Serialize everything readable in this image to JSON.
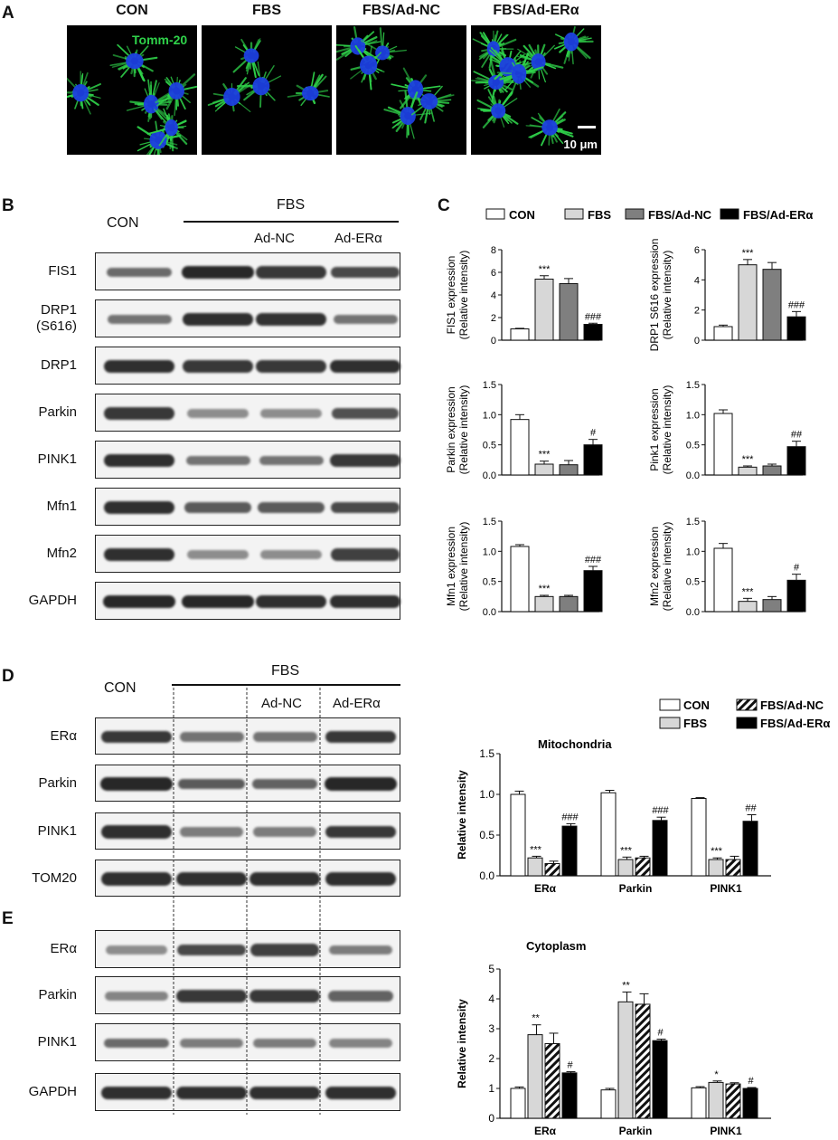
{
  "panel_labels": {
    "a": "A",
    "b": "B",
    "c": "C",
    "d": "D",
    "e": "E"
  },
  "panel_a": {
    "titles": [
      "CON",
      "FBS",
      "FBS/Ad-NC",
      "FBS/Ad-ERα"
    ],
    "stain_label": "Tomm-20",
    "scale_bar": "10 μm",
    "colors": {
      "mitochondria": "#2fd24a",
      "nucleus": "#1c3fe0"
    }
  },
  "panel_b": {
    "header_con": "CON",
    "header_fbs": "FBS",
    "header_adnc": "Ad-NC",
    "header_ader": "Ad-ERα",
    "rows": [
      {
        "label": "FIS1",
        "intensity": [
          0.55,
          0.95,
          0.85,
          0.75
        ]
      },
      {
        "label": "DRP1\n(S616)",
        "intensity": [
          0.5,
          0.9,
          0.88,
          0.5
        ]
      },
      {
        "label": "DRP1",
        "intensity": [
          0.9,
          0.85,
          0.85,
          0.9
        ]
      },
      {
        "label": "Parkin",
        "intensity": [
          0.85,
          0.35,
          0.35,
          0.7
        ]
      },
      {
        "label": "PINK1",
        "intensity": [
          0.9,
          0.5,
          0.5,
          0.85
        ]
      },
      {
        "label": "Mfn1",
        "intensity": [
          0.9,
          0.65,
          0.65,
          0.75
        ]
      },
      {
        "label": "Mfn2",
        "intensity": [
          0.9,
          0.35,
          0.35,
          0.8
        ]
      },
      {
        "label": "GAPDH",
        "intensity": [
          0.95,
          0.95,
          0.9,
          0.9
        ]
      }
    ]
  },
  "panel_c_legend": [
    "CON",
    "FBS",
    "FBS/Ad-NC",
    "FBS/Ad-ERα"
  ],
  "colors": {
    "con": "#ffffff",
    "fbs": "#d7d7d7",
    "adnc": "#7f7f7f",
    "ader": "#000000"
  },
  "chart_data": [
    {
      "type": "bar",
      "ylabel_line1": "FIS1 expression",
      "ylabel_line2": "(Relative intensity)",
      "categories": [
        "CON",
        "FBS",
        "FBS/Ad-NC",
        "FBS/Ad-ERα"
      ],
      "values": [
        1.0,
        5.4,
        5.0,
        1.4
      ],
      "errors": [
        0.05,
        0.3,
        0.45,
        0.1
      ],
      "ylim": [
        0,
        8
      ],
      "yticks": [
        "0",
        "2",
        "4",
        "6",
        "8"
      ],
      "annotations": [
        "",
        "***",
        "",
        "###"
      ]
    },
    {
      "type": "bar",
      "ylabel_line1": "DRP1 S616 expression",
      "ylabel_line2": "(Relative intensity)",
      "categories": [
        "CON",
        "FBS",
        "FBS/Ad-NC",
        "FBS/Ad-ERα"
      ],
      "values": [
        0.9,
        5.0,
        4.7,
        1.55
      ],
      "errors": [
        0.1,
        0.35,
        0.45,
        0.35
      ],
      "ylim": [
        0,
        6
      ],
      "yticks": [
        "0",
        "2",
        "4",
        "6"
      ],
      "annotations": [
        "",
        "***",
        "",
        "###"
      ]
    },
    {
      "type": "bar",
      "ylabel_line1": "Parkin expression",
      "ylabel_line2": "(Relative intensity)",
      "categories": [
        "CON",
        "FBS",
        "FBS/Ad-NC",
        "FBS/Ad-ERα"
      ],
      "values": [
        0.92,
        0.18,
        0.17,
        0.5
      ],
      "errors": [
        0.08,
        0.05,
        0.07,
        0.09
      ],
      "ylim": [
        0,
        1.5
      ],
      "yticks": [
        "0.0",
        "0.5",
        "1.0",
        "1.5"
      ],
      "annotations": [
        "",
        "***",
        "",
        "#"
      ]
    },
    {
      "type": "bar",
      "ylabel_line1": "Pink1 expression",
      "ylabel_line2": "(Relative intensity)",
      "categories": [
        "CON",
        "FBS",
        "FBS/Ad-NC",
        "FBS/Ad-ERα"
      ],
      "values": [
        1.02,
        0.13,
        0.15,
        0.47
      ],
      "errors": [
        0.06,
        0.02,
        0.03,
        0.09
      ],
      "ylim": [
        0,
        1.5
      ],
      "yticks": [
        "0.0",
        "0.5",
        "1.0",
        "1.5"
      ],
      "annotations": [
        "",
        "***",
        "",
        "##"
      ]
    },
    {
      "type": "bar",
      "ylabel_line1": "Mfn1 expression",
      "ylabel_line2": "(Relative intensity)",
      "categories": [
        "CON",
        "FBS",
        "FBS/Ad-NC",
        "FBS/Ad-ERα"
      ],
      "values": [
        1.08,
        0.25,
        0.25,
        0.68
      ],
      "errors": [
        0.03,
        0.02,
        0.02,
        0.07
      ],
      "ylim": [
        0,
        1.5
      ],
      "yticks": [
        "0.0",
        "0.5",
        "1.0",
        "1.5"
      ],
      "annotations": [
        "",
        "***",
        "",
        "###"
      ]
    },
    {
      "type": "bar",
      "ylabel_line1": "Mfn2 expression",
      "ylabel_line2": "(Relative intensity)",
      "categories": [
        "CON",
        "FBS",
        "FBS/Ad-NC",
        "FBS/Ad-ERα"
      ],
      "values": [
        1.05,
        0.17,
        0.2,
        0.52
      ],
      "errors": [
        0.08,
        0.05,
        0.05,
        0.1
      ],
      "ylim": [
        0,
        1.5
      ],
      "yticks": [
        "0.0",
        "0.5",
        "1.0",
        "1.5"
      ],
      "annotations": [
        "",
        "***",
        "",
        "#"
      ]
    },
    {
      "type": "bar",
      "title": "Mitochondria",
      "ylabel": "Relative intensity",
      "categories": [
        "ERα",
        "Parkin",
        "PINK1"
      ],
      "series_names": [
        "CON",
        "FBS",
        "FBS/Ad-NC",
        "FBS/Ad-ERα"
      ],
      "series": [
        {
          "values": [
            1.0,
            1.02,
            0.95
          ],
          "errors": [
            0.04,
            0.03,
            0.01
          ]
        },
        {
          "values": [
            0.22,
            0.2,
            0.2
          ],
          "errors": [
            0.02,
            0.03,
            0.02
          ]
        },
        {
          "values": [
            0.15,
            0.22,
            0.2
          ],
          "errors": [
            0.03,
            0.02,
            0.04
          ]
        },
        {
          "values": [
            0.61,
            0.68,
            0.67
          ],
          "errors": [
            0.03,
            0.04,
            0.08
          ]
        }
      ],
      "annotations": [
        [
          "",
          "***",
          "",
          "###"
        ],
        [
          "",
          "***",
          "",
          "###"
        ],
        [
          "",
          "***",
          "",
          "##"
        ]
      ],
      "ylim": [
        0,
        1.5
      ],
      "yticks": [
        "0.0",
        "0.5",
        "1.0",
        "1.5"
      ]
    },
    {
      "type": "bar",
      "title": "Cytoplasm",
      "ylabel": "Relative intensity",
      "categories": [
        "ERα",
        "Parkin",
        "PINK1"
      ],
      "series_names": [
        "CON",
        "FBS",
        "FBS/Ad-NC",
        "FBS/Ad-ERα"
      ],
      "series": [
        {
          "values": [
            1.0,
            0.95,
            1.02
          ],
          "errors": [
            0.05,
            0.05,
            0.04
          ]
        },
        {
          "values": [
            2.8,
            3.9,
            1.2
          ],
          "errors": [
            0.33,
            0.33,
            0.05
          ]
        },
        {
          "values": [
            2.5,
            3.82,
            1.15
          ],
          "errors": [
            0.35,
            0.35,
            0.04
          ]
        },
        {
          "values": [
            1.52,
            2.6,
            1.0
          ],
          "errors": [
            0.04,
            0.05,
            0.03
          ]
        }
      ],
      "annotations": [
        [
          "",
          "**",
          "",
          "#"
        ],
        [
          "",
          "**",
          "",
          "#"
        ],
        [
          "",
          "*",
          "",
          "#"
        ]
      ],
      "ylim": [
        0,
        5
      ],
      "yticks": [
        "0",
        "1",
        "2",
        "3",
        "4",
        "5"
      ]
    }
  ],
  "panel_d": {
    "header_con": "CON",
    "header_fbs": "FBS",
    "header_adnc": "Ad-NC",
    "header_ader": "Ad-ERα",
    "rows": [
      {
        "label": "ERα",
        "intensity": [
          0.85,
          0.5,
          0.5,
          0.85
        ]
      },
      {
        "label": "Parkin",
        "intensity": [
          0.95,
          0.65,
          0.6,
          0.95
        ]
      },
      {
        "label": "PINK1",
        "intensity": [
          0.9,
          0.45,
          0.45,
          0.85
        ]
      },
      {
        "label": "TOM20",
        "intensity": [
          0.9,
          0.9,
          0.9,
          0.9
        ]
      }
    ]
  },
  "panel_e": {
    "rows": [
      {
        "label": "ERα",
        "intensity": [
          0.35,
          0.75,
          0.8,
          0.45
        ]
      },
      {
        "label": "Parkin",
        "intensity": [
          0.4,
          0.85,
          0.85,
          0.6
        ]
      },
      {
        "label": "PINK1",
        "intensity": [
          0.55,
          0.45,
          0.45,
          0.4
        ]
      },
      {
        "label": "GAPDH",
        "intensity": [
          0.9,
          0.9,
          0.9,
          0.9
        ]
      }
    ]
  },
  "mito_legend": [
    "CON",
    "FBS/Ad-NC",
    "FBS",
    "FBS/Ad-ERα"
  ]
}
